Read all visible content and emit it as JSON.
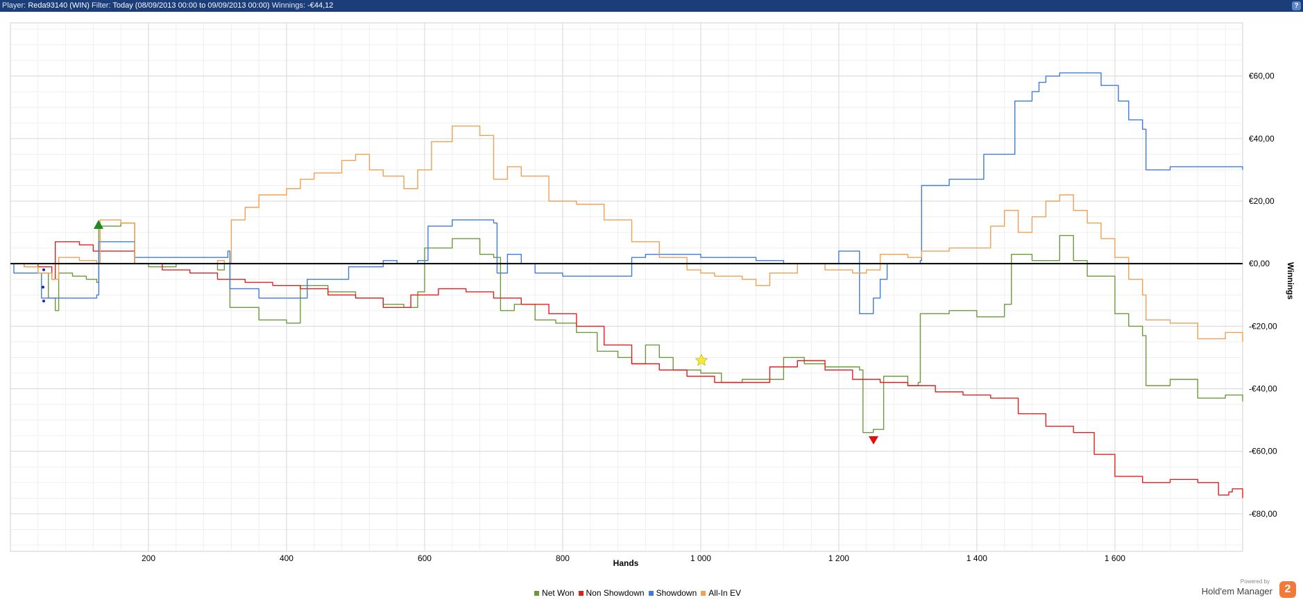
{
  "header": {
    "player_label": "Player:",
    "player_value": "Reda93140 (WIN)",
    "filter_label": "Filter:",
    "filter_value": "Today (08/09/2013 00:00 to 09/09/2013 00:00)",
    "winnings_label": "Winnings:",
    "winnings_value": "-€44,12",
    "help_label": "?"
  },
  "brand": {
    "powered_by": "Powered by",
    "name": "Hold'em Manager",
    "logo_text": "2"
  },
  "chart_data": {
    "type": "line",
    "xlabel": "Hands",
    "ylabel": "Winnings",
    "xlim": [
      0,
      1785
    ],
    "ylim": [
      -92,
      77
    ],
    "x_ticks": [
      200,
      400,
      600,
      800,
      1000,
      1200,
      1400,
      1600
    ],
    "x_tick_labels": [
      "200",
      "400",
      "600",
      "800",
      "1 000",
      "1 200",
      "1 400",
      "1 600"
    ],
    "y_ticks": [
      60,
      40,
      20,
      0,
      -20,
      -40,
      -60,
      -80
    ],
    "y_tick_labels": [
      "€60,00",
      "€40,00",
      "€20,00",
      "€0,00",
      "-€20,00",
      "-€40,00",
      "-€60,00",
      "-€80,00"
    ],
    "grid": true,
    "legend_position": "bottom",
    "series": [
      {
        "name": "Net Won",
        "color": "#6a9a3a",
        "points": [
          [
            0,
            0
          ],
          [
            20,
            -1
          ],
          [
            40,
            -3
          ],
          [
            55,
            -11
          ],
          [
            65,
            -15
          ],
          [
            70,
            -3
          ],
          [
            90,
            -4
          ],
          [
            110,
            -5
          ],
          [
            125,
            -6
          ],
          [
            128,
            12
          ],
          [
            160,
            13
          ],
          [
            180,
            0
          ],
          [
            200,
            -1
          ],
          [
            240,
            0
          ],
          [
            300,
            -2
          ],
          [
            310,
            0
          ],
          [
            318,
            -14
          ],
          [
            360,
            -18
          ],
          [
            400,
            -19
          ],
          [
            420,
            -7
          ],
          [
            460,
            -9
          ],
          [
            500,
            -11
          ],
          [
            540,
            -13
          ],
          [
            570,
            -14
          ],
          [
            590,
            -9
          ],
          [
            600,
            5
          ],
          [
            640,
            8
          ],
          [
            680,
            3
          ],
          [
            700,
            2
          ],
          [
            710,
            -15
          ],
          [
            730,
            -13
          ],
          [
            760,
            -18
          ],
          [
            790,
            -19
          ],
          [
            820,
            -22
          ],
          [
            850,
            -28
          ],
          [
            880,
            -30
          ],
          [
            900,
            -32
          ],
          [
            920,
            -26
          ],
          [
            940,
            -30
          ],
          [
            960,
            -34
          ],
          [
            1000,
            -35
          ],
          [
            1030,
            -38
          ],
          [
            1060,
            -37
          ],
          [
            1090,
            -37
          ],
          [
            1120,
            -30
          ],
          [
            1150,
            -32
          ],
          [
            1180,
            -33
          ],
          [
            1200,
            -33
          ],
          [
            1230,
            -34
          ],
          [
            1235,
            -54
          ],
          [
            1250,
            -53
          ],
          [
            1265,
            -36
          ],
          [
            1300,
            -39
          ],
          [
            1315,
            -38
          ],
          [
            1318,
            -16
          ],
          [
            1360,
            -15
          ],
          [
            1400,
            -17
          ],
          [
            1440,
            -13
          ],
          [
            1450,
            3
          ],
          [
            1480,
            1
          ],
          [
            1520,
            9
          ],
          [
            1540,
            1
          ],
          [
            1560,
            -4
          ],
          [
            1600,
            -16
          ],
          [
            1620,
            -20
          ],
          [
            1640,
            -23
          ],
          [
            1645,
            -39
          ],
          [
            1680,
            -37
          ],
          [
            1720,
            -43
          ],
          [
            1760,
            -42
          ],
          [
            1785,
            -44
          ]
        ]
      },
      {
        "name": "Non Showdown",
        "color": "#e02020",
        "points": [
          [
            0,
            0
          ],
          [
            20,
            0
          ],
          [
            40,
            -1
          ],
          [
            60,
            -5
          ],
          [
            65,
            7
          ],
          [
            100,
            6
          ],
          [
            120,
            4
          ],
          [
            160,
            4
          ],
          [
            180,
            0
          ],
          [
            220,
            -2
          ],
          [
            260,
            -3
          ],
          [
            300,
            -5
          ],
          [
            340,
            -6
          ],
          [
            380,
            -7
          ],
          [
            420,
            -8
          ],
          [
            460,
            -10
          ],
          [
            500,
            -11
          ],
          [
            540,
            -14
          ],
          [
            580,
            -10
          ],
          [
            620,
            -8
          ],
          [
            660,
            -9
          ],
          [
            700,
            -11
          ],
          [
            740,
            -13
          ],
          [
            780,
            -16
          ],
          [
            820,
            -20
          ],
          [
            860,
            -26
          ],
          [
            900,
            -32
          ],
          [
            940,
            -34
          ],
          [
            980,
            -36
          ],
          [
            1020,
            -38
          ],
          [
            1060,
            -38
          ],
          [
            1100,
            -33
          ],
          [
            1140,
            -31
          ],
          [
            1180,
            -34
          ],
          [
            1220,
            -37
          ],
          [
            1260,
            -38
          ],
          [
            1300,
            -39
          ],
          [
            1340,
            -41
          ],
          [
            1380,
            -42
          ],
          [
            1420,
            -43
          ],
          [
            1460,
            -48
          ],
          [
            1500,
            -52
          ],
          [
            1540,
            -54
          ],
          [
            1570,
            -61
          ],
          [
            1600,
            -68
          ],
          [
            1640,
            -70
          ],
          [
            1680,
            -69
          ],
          [
            1720,
            -70
          ],
          [
            1750,
            -74
          ],
          [
            1765,
            -73
          ],
          [
            1770,
            -72
          ],
          [
            1785,
            -75
          ]
        ]
      },
      {
        "name": "Showdown",
        "color": "#3f7ae0",
        "points": [
          [
            0,
            0
          ],
          [
            5,
            -3
          ],
          [
            40,
            -3
          ],
          [
            45,
            -11
          ],
          [
            60,
            -11
          ],
          [
            80,
            -11
          ],
          [
            125,
            -10
          ],
          [
            128,
            7
          ],
          [
            170,
            7
          ],
          [
            180,
            2
          ],
          [
            220,
            2
          ],
          [
            300,
            2
          ],
          [
            315,
            4
          ],
          [
            318,
            -8
          ],
          [
            330,
            -8
          ],
          [
            360,
            -11
          ],
          [
            420,
            -11
          ],
          [
            430,
            -5
          ],
          [
            460,
            -5
          ],
          [
            490,
            -1
          ],
          [
            520,
            -1
          ],
          [
            540,
            1
          ],
          [
            560,
            0
          ],
          [
            590,
            1
          ],
          [
            605,
            12
          ],
          [
            640,
            14
          ],
          [
            680,
            14
          ],
          [
            700,
            13
          ],
          [
            705,
            -3
          ],
          [
            720,
            3
          ],
          [
            740,
            0
          ],
          [
            760,
            -3
          ],
          [
            800,
            -4
          ],
          [
            880,
            -4
          ],
          [
            900,
            2
          ],
          [
            920,
            3
          ],
          [
            980,
            3
          ],
          [
            1000,
            2
          ],
          [
            1040,
            2
          ],
          [
            1080,
            1
          ],
          [
            1120,
            0
          ],
          [
            1180,
            0
          ],
          [
            1200,
            4
          ],
          [
            1225,
            4
          ],
          [
            1230,
            -16
          ],
          [
            1245,
            -16
          ],
          [
            1250,
            -11
          ],
          [
            1260,
            -5
          ],
          [
            1270,
            0
          ],
          [
            1300,
            0
          ],
          [
            1318,
            1
          ],
          [
            1320,
            25
          ],
          [
            1360,
            27
          ],
          [
            1400,
            27
          ],
          [
            1410,
            35
          ],
          [
            1450,
            35
          ],
          [
            1455,
            52
          ],
          [
            1480,
            55
          ],
          [
            1490,
            58
          ],
          [
            1500,
            60
          ],
          [
            1520,
            61
          ],
          [
            1560,
            61
          ],
          [
            1580,
            57
          ],
          [
            1600,
            57
          ],
          [
            1605,
            52
          ],
          [
            1620,
            46
          ],
          [
            1640,
            43
          ],
          [
            1645,
            30
          ],
          [
            1680,
            31
          ],
          [
            1720,
            31
          ],
          [
            1760,
            31
          ],
          [
            1785,
            30
          ]
        ]
      },
      {
        "name": "All-In EV",
        "color": "#f0a050",
        "points": [
          [
            0,
            0
          ],
          [
            20,
            -1
          ],
          [
            40,
            -3
          ],
          [
            60,
            -5
          ],
          [
            70,
            2
          ],
          [
            100,
            1
          ],
          [
            125,
            0
          ],
          [
            130,
            14
          ],
          [
            160,
            13
          ],
          [
            180,
            0
          ],
          [
            220,
            0
          ],
          [
            300,
            1
          ],
          [
            310,
            0
          ],
          [
            320,
            14
          ],
          [
            340,
            18
          ],
          [
            360,
            22
          ],
          [
            400,
            24
          ],
          [
            420,
            27
          ],
          [
            440,
            29
          ],
          [
            480,
            33
          ],
          [
            500,
            35
          ],
          [
            520,
            30
          ],
          [
            540,
            28
          ],
          [
            570,
            24
          ],
          [
            590,
            30
          ],
          [
            610,
            39
          ],
          [
            640,
            44
          ],
          [
            680,
            41
          ],
          [
            700,
            27
          ],
          [
            720,
            31
          ],
          [
            740,
            28
          ],
          [
            780,
            20
          ],
          [
            820,
            19
          ],
          [
            860,
            14
          ],
          [
            900,
            7
          ],
          [
            940,
            2
          ],
          [
            980,
            -2
          ],
          [
            1000,
            -3
          ],
          [
            1020,
            -4
          ],
          [
            1060,
            -5
          ],
          [
            1080,
            -7
          ],
          [
            1100,
            -3
          ],
          [
            1140,
            0
          ],
          [
            1180,
            -2
          ],
          [
            1220,
            -3
          ],
          [
            1240,
            -2
          ],
          [
            1260,
            3
          ],
          [
            1300,
            2
          ],
          [
            1320,
            4
          ],
          [
            1360,
            5
          ],
          [
            1400,
            5
          ],
          [
            1420,
            12
          ],
          [
            1440,
            17
          ],
          [
            1460,
            10
          ],
          [
            1480,
            15
          ],
          [
            1500,
            20
          ],
          [
            1520,
            22
          ],
          [
            1540,
            17
          ],
          [
            1560,
            13
          ],
          [
            1580,
            8
          ],
          [
            1600,
            2
          ],
          [
            1620,
            -5
          ],
          [
            1640,
            -10
          ],
          [
            1645,
            -18
          ],
          [
            1680,
            -19
          ],
          [
            1720,
            -24
          ],
          [
            1760,
            -22
          ],
          [
            1785,
            -25
          ]
        ]
      }
    ]
  }
}
